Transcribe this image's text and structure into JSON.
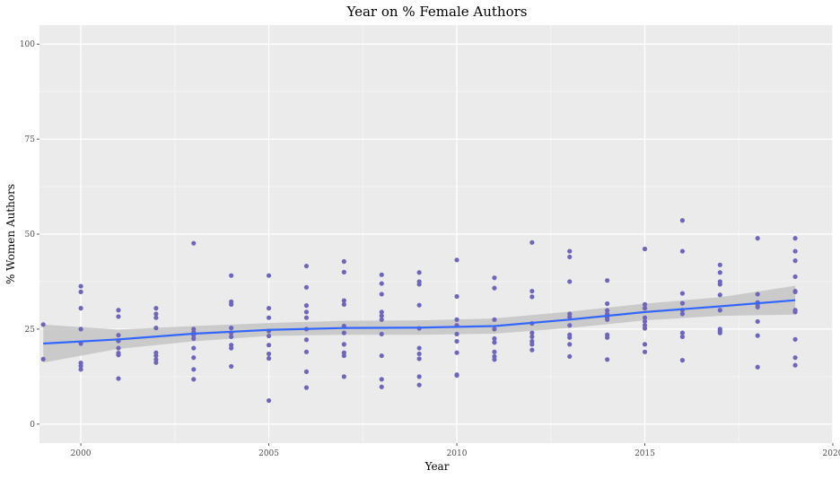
{
  "chart_data": {
    "type": "scatter",
    "title": "Year on % Female Authors",
    "xlabel": "Year",
    "ylabel": "% Women Authors",
    "xlim": [
      1998.9,
      2020
    ],
    "ylim": [
      0,
      100
    ],
    "x_ticks": [
      2000,
      2005,
      2010,
      2015,
      2020
    ],
    "y_ticks": [
      0,
      25,
      50,
      75,
      100
    ],
    "grid": true,
    "point_color": "#6e67b8",
    "smooth_color": "#3366ff",
    "band_color": "#c4c4c4",
    "panel_color": "#ebebeb",
    "points": [
      [
        1999,
        26.2
      ],
      [
        1999,
        17.1
      ],
      [
        2000,
        36.3
      ],
      [
        2000,
        34.8
      ],
      [
        2000,
        30.5
      ],
      [
        2000,
        25.0
      ],
      [
        2000,
        21.2
      ],
      [
        2000,
        16.1
      ],
      [
        2000,
        15.3
      ],
      [
        2000,
        14.4
      ],
      [
        2001,
        30.0
      ],
      [
        2001,
        28.3
      ],
      [
        2001,
        23.4
      ],
      [
        2001,
        21.9
      ],
      [
        2001,
        20.0
      ],
      [
        2001,
        18.7
      ],
      [
        2001,
        18.2
      ],
      [
        2001,
        12.0
      ],
      [
        2002,
        30.5
      ],
      [
        2002,
        29.0
      ],
      [
        2002,
        28.0
      ],
      [
        2002,
        25.3
      ],
      [
        2002,
        18.8
      ],
      [
        2002,
        18.0
      ],
      [
        2002,
        17.0
      ],
      [
        2002,
        16.2
      ],
      [
        2003,
        47.6
      ],
      [
        2003,
        25.0
      ],
      [
        2003,
        24.2
      ],
      [
        2003,
        23.4
      ],
      [
        2003,
        22.5
      ],
      [
        2003,
        20.0
      ],
      [
        2003,
        17.5
      ],
      [
        2003,
        14.4
      ],
      [
        2003,
        11.8
      ],
      [
        2004,
        39.1
      ],
      [
        2004,
        32.2
      ],
      [
        2004,
        31.5
      ],
      [
        2004,
        25.3
      ],
      [
        2004,
        24.0
      ],
      [
        2004,
        23.0
      ],
      [
        2004,
        20.8
      ],
      [
        2004,
        20.0
      ],
      [
        2004,
        15.2
      ],
      [
        2005,
        39.1
      ],
      [
        2005,
        30.5
      ],
      [
        2005,
        28.0
      ],
      [
        2005,
        24.5
      ],
      [
        2005,
        23.2
      ],
      [
        2005,
        20.8
      ],
      [
        2005,
        18.5
      ],
      [
        2005,
        17.3
      ],
      [
        2005,
        6.2
      ],
      [
        2006,
        41.6
      ],
      [
        2006,
        36.0
      ],
      [
        2006,
        31.2
      ],
      [
        2006,
        29.5
      ],
      [
        2006,
        28.0
      ],
      [
        2006,
        25.0
      ],
      [
        2006,
        22.2
      ],
      [
        2006,
        19.0
      ],
      [
        2006,
        13.8
      ],
      [
        2006,
        9.6
      ],
      [
        2007,
        42.8
      ],
      [
        2007,
        40.0
      ],
      [
        2007,
        32.5
      ],
      [
        2007,
        31.5
      ],
      [
        2007,
        25.8
      ],
      [
        2007,
        24.0
      ],
      [
        2007,
        21.0
      ],
      [
        2007,
        18.8
      ],
      [
        2007,
        18.0
      ],
      [
        2007,
        12.5
      ],
      [
        2008,
        39.3
      ],
      [
        2008,
        37.0
      ],
      [
        2008,
        34.2
      ],
      [
        2008,
        29.5
      ],
      [
        2008,
        28.5
      ],
      [
        2008,
        27.5
      ],
      [
        2008,
        23.7
      ],
      [
        2008,
        18.0
      ],
      [
        2008,
        11.8
      ],
      [
        2008,
        9.8
      ],
      [
        2009,
        39.9
      ],
      [
        2009,
        37.5
      ],
      [
        2009,
        36.8
      ],
      [
        2009,
        31.3
      ],
      [
        2009,
        25.2
      ],
      [
        2009,
        20.0
      ],
      [
        2009,
        18.5
      ],
      [
        2009,
        17.2
      ],
      [
        2009,
        12.5
      ],
      [
        2009,
        10.3
      ],
      [
        2010,
        43.2
      ],
      [
        2010,
        33.6
      ],
      [
        2010,
        27.5
      ],
      [
        2010,
        26.0
      ],
      [
        2010,
        23.7
      ],
      [
        2010,
        21.8
      ],
      [
        2010,
        18.8
      ],
      [
        2010,
        13.0
      ],
      [
        2010,
        12.8
      ],
      [
        2011,
        38.5
      ],
      [
        2011,
        35.8
      ],
      [
        2011,
        27.5
      ],
      [
        2011,
        25.0
      ],
      [
        2011,
        22.5
      ],
      [
        2011,
        21.5
      ],
      [
        2011,
        19.0
      ],
      [
        2011,
        17.8
      ],
      [
        2011,
        17.0
      ],
      [
        2012,
        47.8
      ],
      [
        2012,
        35.0
      ],
      [
        2012,
        33.5
      ],
      [
        2012,
        26.5
      ],
      [
        2012,
        24.0
      ],
      [
        2012,
        23.0
      ],
      [
        2012,
        21.8
      ],
      [
        2012,
        21.0
      ],
      [
        2012,
        19.5
      ],
      [
        2013,
        45.5
      ],
      [
        2013,
        44.0
      ],
      [
        2013,
        37.5
      ],
      [
        2013,
        29.0
      ],
      [
        2013,
        28.2
      ],
      [
        2013,
        26.0
      ],
      [
        2013,
        23.5
      ],
      [
        2013,
        22.8
      ],
      [
        2013,
        21.0
      ],
      [
        2013,
        17.8
      ],
      [
        2014,
        37.8
      ],
      [
        2014,
        31.7
      ],
      [
        2014,
        29.9
      ],
      [
        2014,
        29.0
      ],
      [
        2014,
        28.0
      ],
      [
        2014,
        27.5
      ],
      [
        2014,
        23.5
      ],
      [
        2014,
        22.8
      ],
      [
        2014,
        17.0
      ],
      [
        2015,
        46.1
      ],
      [
        2015,
        31.5
      ],
      [
        2015,
        30.5
      ],
      [
        2015,
        28.0
      ],
      [
        2015,
        27.0
      ],
      [
        2015,
        26.0
      ],
      [
        2015,
        25.2
      ],
      [
        2015,
        21.0
      ],
      [
        2015,
        19.0
      ],
      [
        2016,
        53.6
      ],
      [
        2016,
        45.5
      ],
      [
        2016,
        34.4
      ],
      [
        2016,
        31.8
      ],
      [
        2016,
        30.0
      ],
      [
        2016,
        29.0
      ],
      [
        2016,
        24.0
      ],
      [
        2016,
        23.0
      ],
      [
        2016,
        16.8
      ],
      [
        2017,
        41.9
      ],
      [
        2017,
        39.9
      ],
      [
        2017,
        37.5
      ],
      [
        2017,
        36.8
      ],
      [
        2017,
        34.0
      ],
      [
        2017,
        30.0
      ],
      [
        2017,
        25.0
      ],
      [
        2017,
        24.5
      ],
      [
        2017,
        24.0
      ],
      [
        2018,
        48.9
      ],
      [
        2018,
        34.2
      ],
      [
        2018,
        32.0
      ],
      [
        2018,
        31.5
      ],
      [
        2018,
        30.8
      ],
      [
        2018,
        27.0
      ],
      [
        2018,
        23.3
      ],
      [
        2018,
        15.0
      ],
      [
        2019,
        48.9
      ],
      [
        2019,
        45.5
      ],
      [
        2019,
        43.0
      ],
      [
        2019,
        38.8
      ],
      [
        2019,
        35.0
      ],
      [
        2019,
        34.8
      ],
      [
        2019,
        30.0
      ],
      [
        2019,
        29.5
      ],
      [
        2019,
        22.3
      ],
      [
        2019,
        17.5
      ],
      [
        2019,
        15.5
      ]
    ],
    "smooth_line": {
      "x": [
        1999,
        2001,
        2003,
        2005,
        2007,
        2009,
        2011,
        2013,
        2015,
        2017,
        2019
      ],
      "y": [
        21.2,
        22.3,
        23.8,
        24.8,
        25.3,
        25.4,
        25.8,
        27.5,
        29.5,
        31.0,
        32.6
      ],
      "lower": [
        16.2,
        19.8,
        21.8,
        23.2,
        23.5,
        23.5,
        23.8,
        25.3,
        27.3,
        28.5,
        28.8
      ],
      "upper": [
        26.2,
        24.9,
        25.8,
        26.6,
        27.2,
        27.3,
        27.8,
        29.6,
        31.7,
        33.4,
        36.4
      ]
    }
  }
}
